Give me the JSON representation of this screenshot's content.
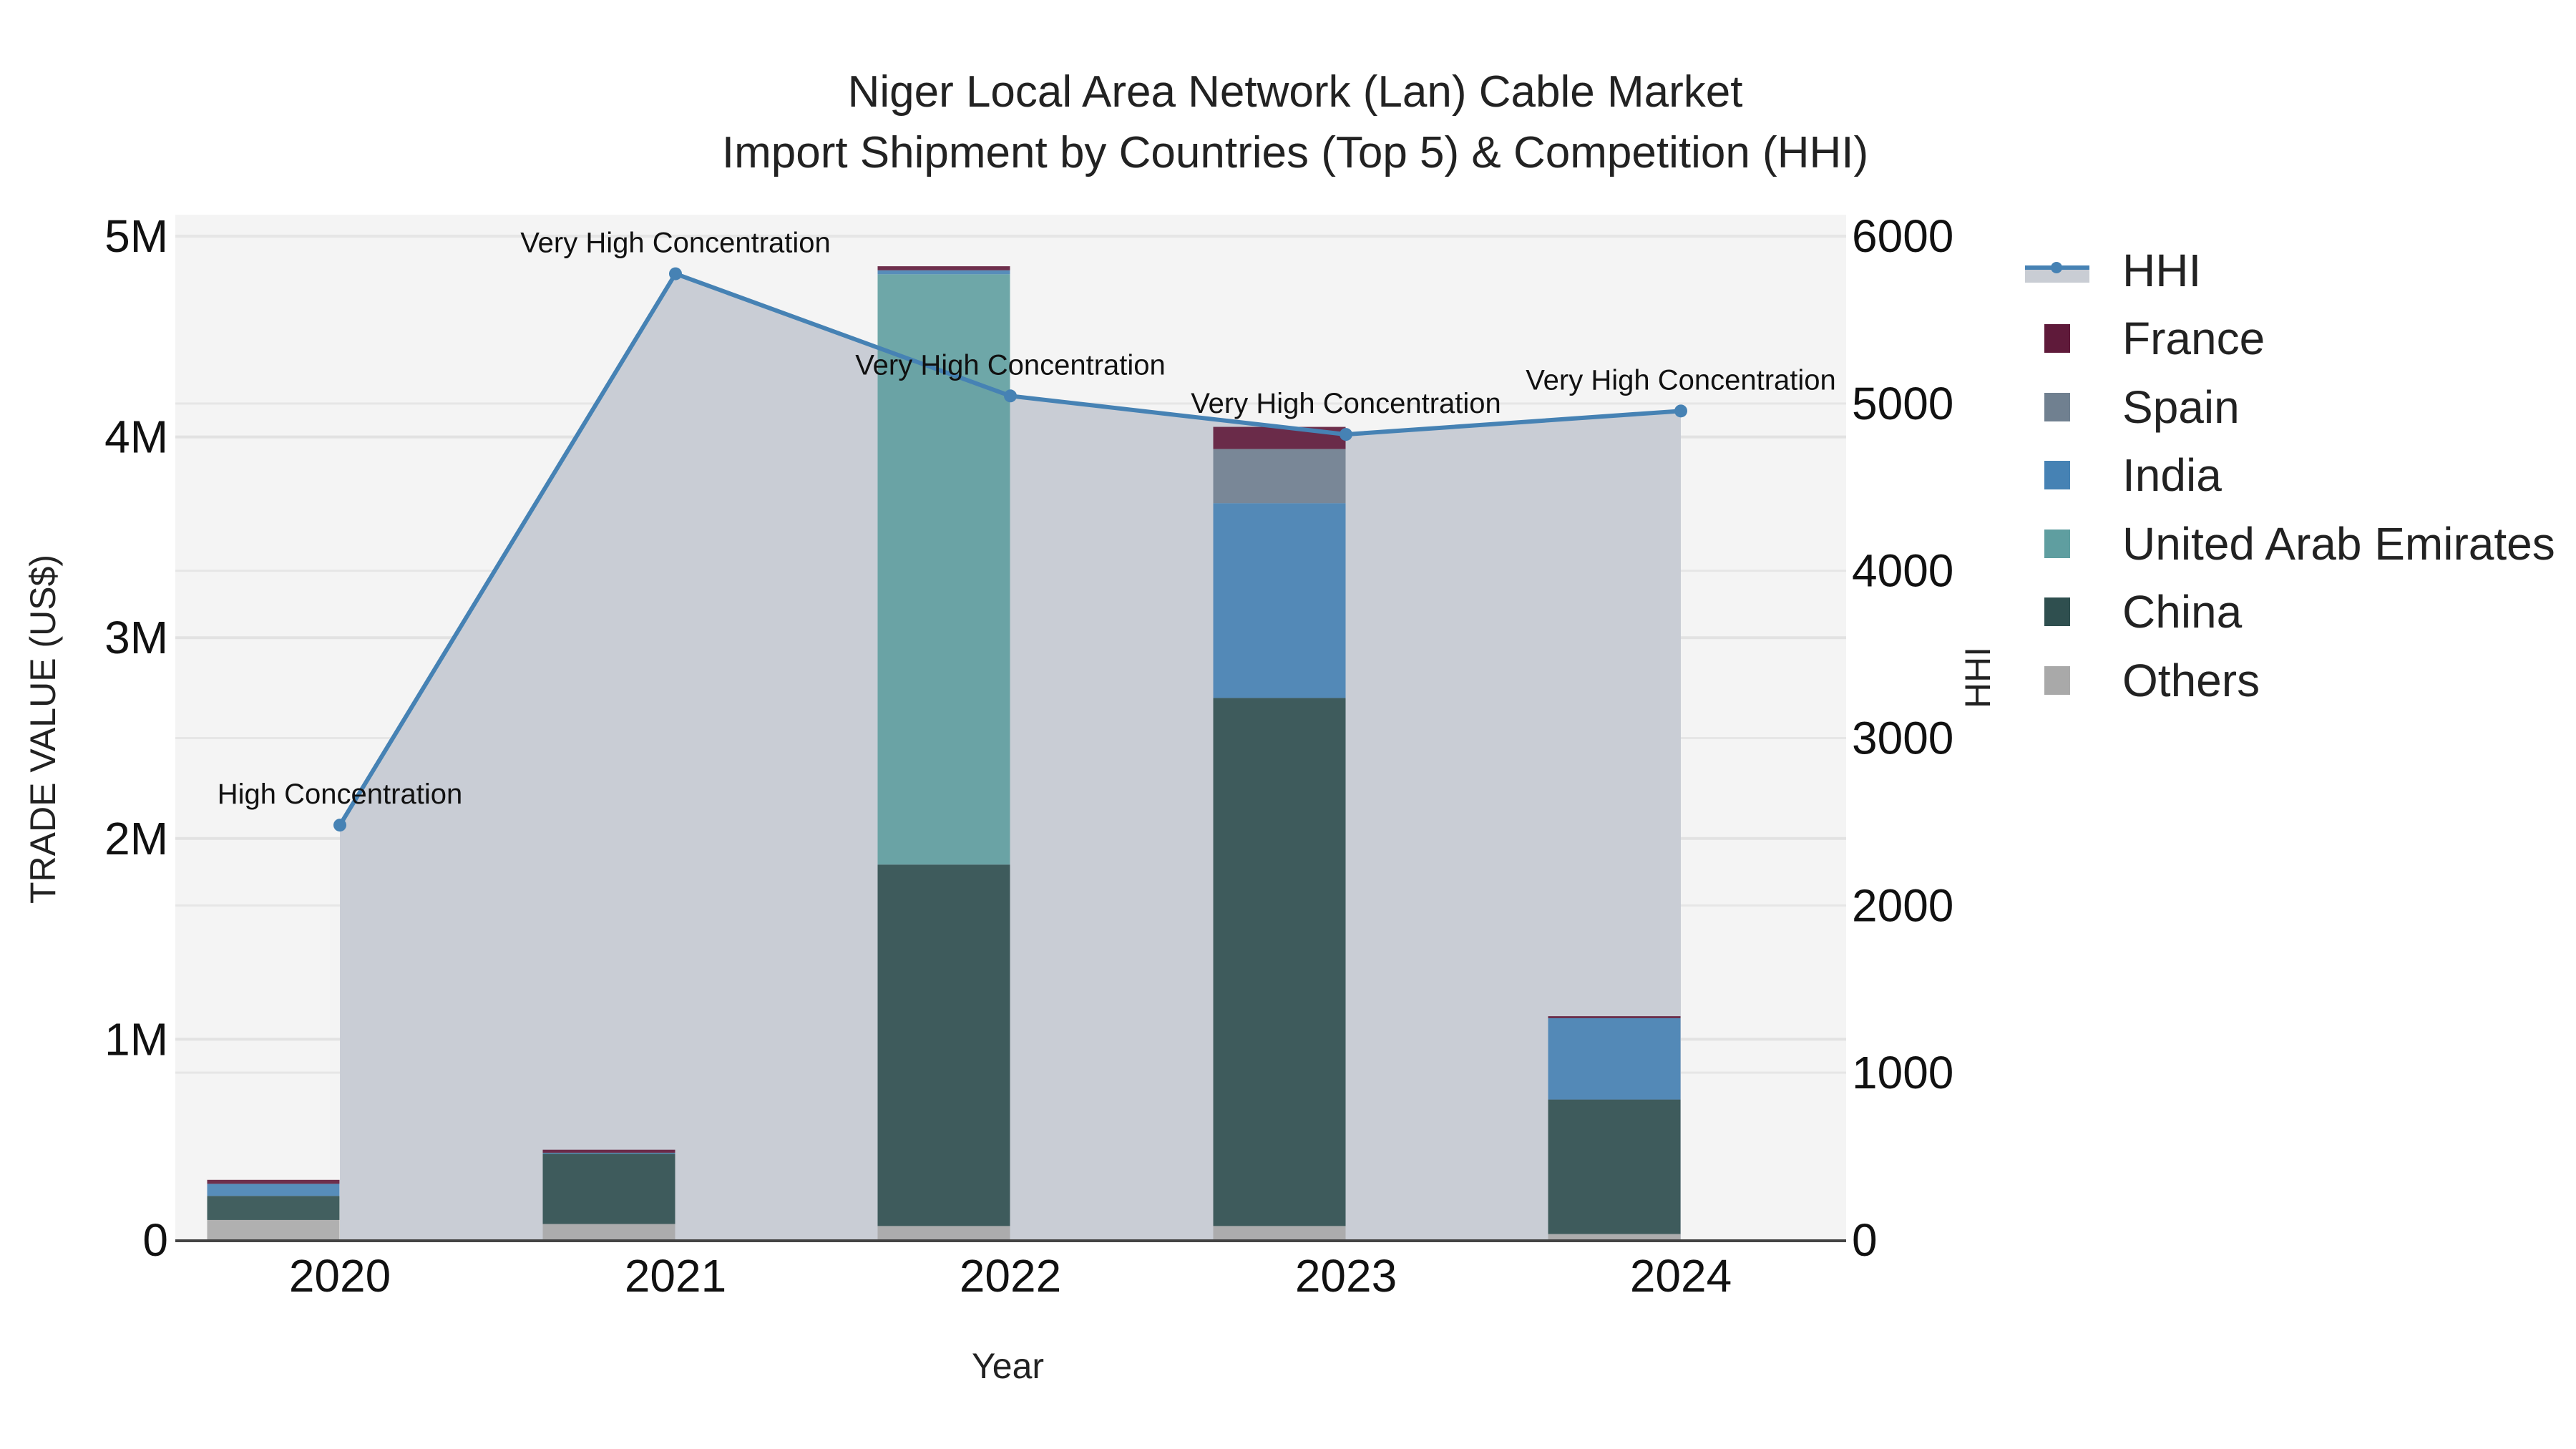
{
  "title": {
    "line1": "Niger Local Area Network (Lan) Cable Market",
    "line2": "Import Shipment by Countries (Top 5) & Competition (HHI)"
  },
  "axes": {
    "x_title": "Year",
    "y_left_title": "TRADE VALUE (US$)",
    "y_right_title": "HHI",
    "y_left_ticks": [
      "0",
      "1M",
      "2M",
      "3M",
      "4M",
      "5M"
    ],
    "y_right_ticks": [
      "0",
      "1000",
      "2000",
      "3000",
      "4000",
      "5000",
      "6000"
    ],
    "x_ticks": [
      "2020",
      "2021",
      "2022",
      "2023",
      "2024"
    ]
  },
  "legend": {
    "items": [
      {
        "label": "HHI",
        "color": "#4682B4",
        "type": "line"
      },
      {
        "label": "France",
        "color": "#5F1A3A",
        "type": "bar"
      },
      {
        "label": "Spain",
        "color": "#708090",
        "type": "bar"
      },
      {
        "label": "India",
        "color": "#4682B4",
        "type": "bar"
      },
      {
        "label": "United Arab Emirates",
        "color": "#5F9EA0",
        "type": "bar"
      },
      {
        "label": "China",
        "color": "#2F4F4F",
        "type": "bar"
      },
      {
        "label": "Others",
        "color": "#A9A9A9",
        "type": "bar"
      }
    ]
  },
  "chart_data": {
    "type": "bar",
    "stacked": true,
    "title": "Niger Local Area Network (Lan) Cable Market — Import Shipment by Countries (Top 5) & Competition (HHI)",
    "xlabel": "Year",
    "ylabel": "TRADE VALUE (US$)",
    "ylabel_right": "HHI",
    "ylim": [
      0,
      5000000
    ],
    "ylim_right": [
      0,
      6000
    ],
    "grid": true,
    "legend_position": "right",
    "categories": [
      "2020",
      "2021",
      "2022",
      "2023",
      "2024"
    ],
    "series": [
      {
        "name": "Others",
        "color": "#A9A9A9",
        "values": [
          100000,
          80000,
          70000,
          70000,
          30000
        ]
      },
      {
        "name": "China",
        "color": "#2F4F4F",
        "values": [
          120000,
          350000,
          1800000,
          2630000,
          670000
        ]
      },
      {
        "name": "United Arab Emirates",
        "color": "#5F9EA0",
        "values": [
          0,
          0,
          2940000,
          0,
          0
        ]
      },
      {
        "name": "India",
        "color": "#4682B4",
        "values": [
          60000,
          5000,
          20000,
          970000,
          405000
        ]
      },
      {
        "name": "Spain",
        "color": "#708090",
        "values": [
          0,
          0,
          0,
          270000,
          0
        ]
      },
      {
        "name": "France",
        "color": "#5F1A3A",
        "values": [
          20000,
          15000,
          20000,
          110000,
          10000
        ]
      }
    ],
    "line_series": {
      "name": "HHI",
      "axis": "right",
      "color": "#4682B4",
      "fill": "area",
      "values": [
        2480,
        5775,
        5045,
        4815,
        4955
      ],
      "annotations": [
        "High Concentration",
        "Very High Concentration",
        "Very High Concentration",
        "Very High Concentration",
        "Very High Concentration"
      ]
    }
  }
}
